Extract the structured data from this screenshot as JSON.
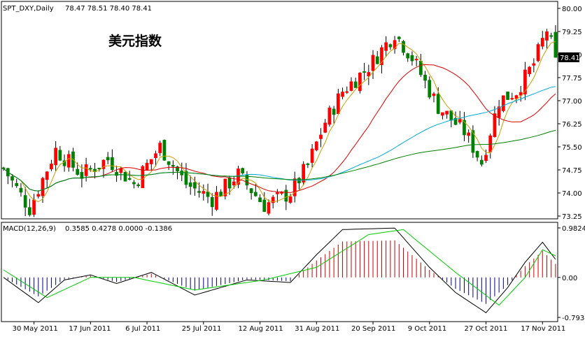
{
  "header": {
    "symbol": "SPT_DXY,Daily",
    "ohlc": "78.47 78.51 78.40 78.41",
    "chinese_title": "美元指数"
  },
  "macd_header": {
    "label": "MACD(12,26,9)",
    "values": "0.3585 0.4278 0.0000 -0.1386"
  },
  "colors": {
    "background": "#ffffff",
    "frame": "#000000",
    "bull_candle": "#ff0000",
    "bear_candle": "#008000",
    "wick": "#000000",
    "ma_short": "#c8a000",
    "ma_mid": "#dd0000",
    "ma_long1": "#00aadd",
    "ma_long2": "#008000",
    "macd_line": "#000000",
    "signal_line": "#00cc00",
    "hist_pos": "#cc0000",
    "hist_neg": "#000080",
    "current_price_bg": "#000000",
    "current_price_text": "#ffffff"
  },
  "chart_data": [
    {
      "type": "candlestick",
      "title": "SPT_DXY,Daily",
      "ylim": [
        73.25,
        80.0
      ],
      "y_ticks": [
        73.25,
        74.0,
        74.75,
        75.5,
        76.25,
        77.0,
        77.75,
        78.5,
        79.25,
        80.0
      ],
      "y_tick_labels": [
        "73.25",
        "74.00",
        "74.75",
        "75.50",
        "76.25",
        "77.00",
        "77.75",
        "78.50",
        "79.25",
        "80.00"
      ],
      "current_price": 78.41,
      "current_price_label": "78.41",
      "x_count": 128,
      "date_labels": [
        {
          "index": 7,
          "label": "30 May 2011"
        },
        {
          "index": 20,
          "label": "17 Jun 2011"
        },
        {
          "index": 33,
          "label": "6 Jul 2011"
        },
        {
          "index": 46,
          "label": "25 Jul 2011"
        },
        {
          "index": 59,
          "label": "12 Aug 2011"
        },
        {
          "index": 72,
          "label": "31 Aug 2011"
        },
        {
          "index": 85,
          "label": "20 Sep 2011"
        },
        {
          "index": 98,
          "label": "9 Oct 2011"
        },
        {
          "index": 111,
          "label": "27 Oct 2011"
        },
        {
          "index": 124,
          "label": "17 Nov 2011"
        }
      ],
      "keypoints": [
        {
          "i": 0,
          "c": 74.8
        },
        {
          "i": 6,
          "c": 73.5
        },
        {
          "i": 12,
          "c": 75.4
        },
        {
          "i": 18,
          "c": 74.6
        },
        {
          "i": 24,
          "c": 75.1
        },
        {
          "i": 30,
          "c": 74.3
        },
        {
          "i": 36,
          "c": 75.5
        },
        {
          "i": 42,
          "c": 74.3
        },
        {
          "i": 48,
          "c": 73.8
        },
        {
          "i": 54,
          "c": 74.6
        },
        {
          "i": 60,
          "c": 73.6
        },
        {
          "i": 66,
          "c": 74.0
        },
        {
          "i": 70,
          "c": 74.9
        },
        {
          "i": 74,
          "c": 76.3
        },
        {
          "i": 78,
          "c": 77.3
        },
        {
          "i": 84,
          "c": 78.1
        },
        {
          "i": 90,
          "c": 79.2
        },
        {
          "i": 94,
          "c": 78.4
        },
        {
          "i": 100,
          "c": 76.8
        },
        {
          "i": 106,
          "c": 76.0
        },
        {
          "i": 110,
          "c": 75.0
        },
        {
          "i": 114,
          "c": 77.0
        },
        {
          "i": 118,
          "c": 77.3
        },
        {
          "i": 122,
          "c": 78.2
        },
        {
          "i": 125,
          "c": 79.3
        },
        {
          "i": 127,
          "c": 78.41
        }
      ],
      "moving_averages": [
        {
          "name": "ma_short",
          "period": 5
        },
        {
          "name": "ma_mid",
          "period": 20
        },
        {
          "name": "ma_long1",
          "period": 50
        },
        {
          "name": "ma_long2",
          "period": 100
        }
      ]
    },
    {
      "type": "macd",
      "title": "MACD(12,26,9)",
      "ylim": [
        -0.7934,
        0.9824
      ],
      "y_tick_labels": [
        "0.9824",
        "0.00",
        "-0.7934"
      ],
      "macd_keypoints": [
        {
          "i": 0,
          "v": 0.0
        },
        {
          "i": 8,
          "v": -0.5
        },
        {
          "i": 14,
          "v": -0.05
        },
        {
          "i": 20,
          "v": 0.05
        },
        {
          "i": 26,
          "v": -0.12
        },
        {
          "i": 34,
          "v": 0.1
        },
        {
          "i": 44,
          "v": -0.35
        },
        {
          "i": 56,
          "v": -0.05
        },
        {
          "i": 66,
          "v": -0.1
        },
        {
          "i": 72,
          "v": 0.45
        },
        {
          "i": 78,
          "v": 0.95
        },
        {
          "i": 90,
          "v": 0.98
        },
        {
          "i": 98,
          "v": 0.2
        },
        {
          "i": 104,
          "v": -0.3
        },
        {
          "i": 111,
          "v": -0.7
        },
        {
          "i": 116,
          "v": -0.2
        },
        {
          "i": 120,
          "v": 0.3
        },
        {
          "i": 124,
          "v": 0.7
        },
        {
          "i": 127,
          "v": 0.3585
        }
      ],
      "signal_keypoints": [
        {
          "i": 0,
          "v": 0.15
        },
        {
          "i": 10,
          "v": -0.4
        },
        {
          "i": 20,
          "v": 0.0
        },
        {
          "i": 30,
          "v": 0.0
        },
        {
          "i": 44,
          "v": -0.25
        },
        {
          "i": 60,
          "v": -0.05
        },
        {
          "i": 72,
          "v": 0.2
        },
        {
          "i": 84,
          "v": 0.85
        },
        {
          "i": 92,
          "v": 0.95
        },
        {
          "i": 104,
          "v": 0.1
        },
        {
          "i": 114,
          "v": -0.55
        },
        {
          "i": 120,
          "v": 0.0
        },
        {
          "i": 124,
          "v": 0.55
        },
        {
          "i": 127,
          "v": 0.4278
        }
      ],
      "histogram_values": "computed as macd minus signal"
    }
  ]
}
